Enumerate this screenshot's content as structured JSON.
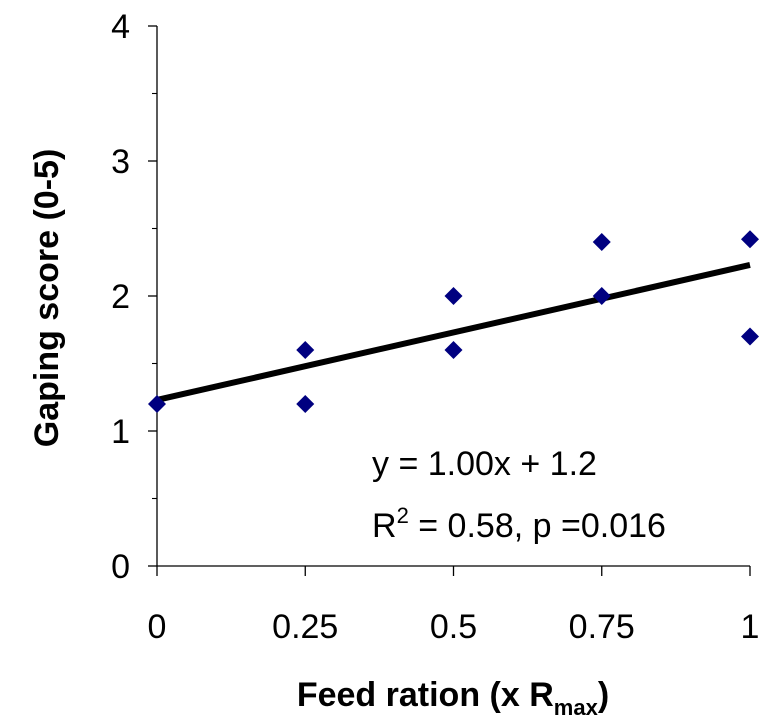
{
  "chart_data": {
    "type": "scatter",
    "title": "",
    "xlabel": "Feed ration (x R",
    "xlabel_sub": "max",
    "xlabel_end": ")",
    "ylabel": "Gaping score (0-5)",
    "xlim": [
      0,
      1
    ],
    "ylim": [
      0,
      4
    ],
    "xticks": [
      0,
      0.25,
      0.5,
      0.75,
      1
    ],
    "xtick_labels": [
      "0",
      "0.25",
      "0.5",
      "0.75",
      "1"
    ],
    "yticks": [
      0,
      1,
      2,
      3,
      4
    ],
    "ytick_labels": [
      "0",
      "1",
      "2",
      "3",
      "4"
    ],
    "grid": false,
    "series": [
      {
        "points": [
          {
            "x": 0,
            "y": 1.2
          },
          {
            "x": 0.25,
            "y": 1.6
          },
          {
            "x": 0.25,
            "y": 1.2
          },
          {
            "x": 0.5,
            "y": 2.0
          },
          {
            "x": 0.5,
            "y": 1.6
          },
          {
            "x": 0.75,
            "y": 2.4
          },
          {
            "x": 0.75,
            "y": 2.0
          },
          {
            "x": 1,
            "y": 2.42
          },
          {
            "x": 1,
            "y": 1.7
          }
        ],
        "marker": "diamond",
        "color": "#000080"
      }
    ],
    "trendline": {
      "x": [
        0,
        1
      ],
      "y": [
        1.23,
        2.23
      ],
      "color": "#000000"
    },
    "annotations": {
      "equation": "y = 1.00x + 1.2",
      "r2_prefix": "R",
      "r2_sup": "2",
      "r2_rest": " = 0.58, p =0.016"
    }
  }
}
